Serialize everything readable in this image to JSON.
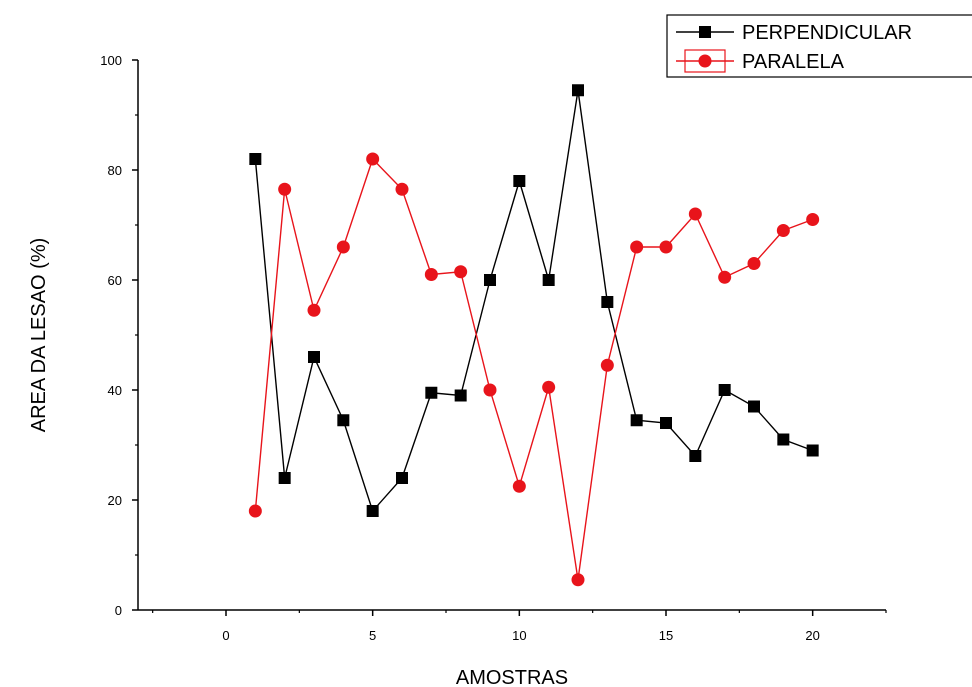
{
  "chart_data": {
    "type": "line",
    "title": "",
    "xlabel": "AMOSTRAS",
    "ylabel": "AREA DA LESAO (%)",
    "xlim": [
      -3,
      22.5
    ],
    "ylim": [
      0,
      100
    ],
    "xticks": [
      0,
      5,
      10,
      15,
      20
    ],
    "yticks": [
      0,
      20,
      40,
      60,
      80,
      100
    ],
    "grid": false,
    "legend_position": "top-right",
    "x": [
      1,
      2,
      3,
      4,
      5,
      6,
      7,
      8,
      9,
      10,
      11,
      12,
      13,
      14,
      15,
      16,
      17,
      18,
      19,
      20
    ],
    "series": [
      {
        "name": "PERPENDICULAR",
        "color": "#000000",
        "marker": "square",
        "values": [
          82,
          24,
          46,
          34.5,
          18,
          24,
          39.5,
          39,
          60,
          78,
          60,
          94.5,
          56,
          34.5,
          34,
          28,
          40,
          37,
          31,
          29
        ]
      },
      {
        "name": "PARALELA",
        "color": "#e8141b",
        "marker": "circle",
        "values": [
          18,
          76.5,
          54.5,
          66,
          82,
          76.5,
          61,
          61.5,
          40,
          22.5,
          40.5,
          5.5,
          44.5,
          66,
          66,
          72,
          60.5,
          63,
          69,
          71
        ]
      }
    ]
  }
}
